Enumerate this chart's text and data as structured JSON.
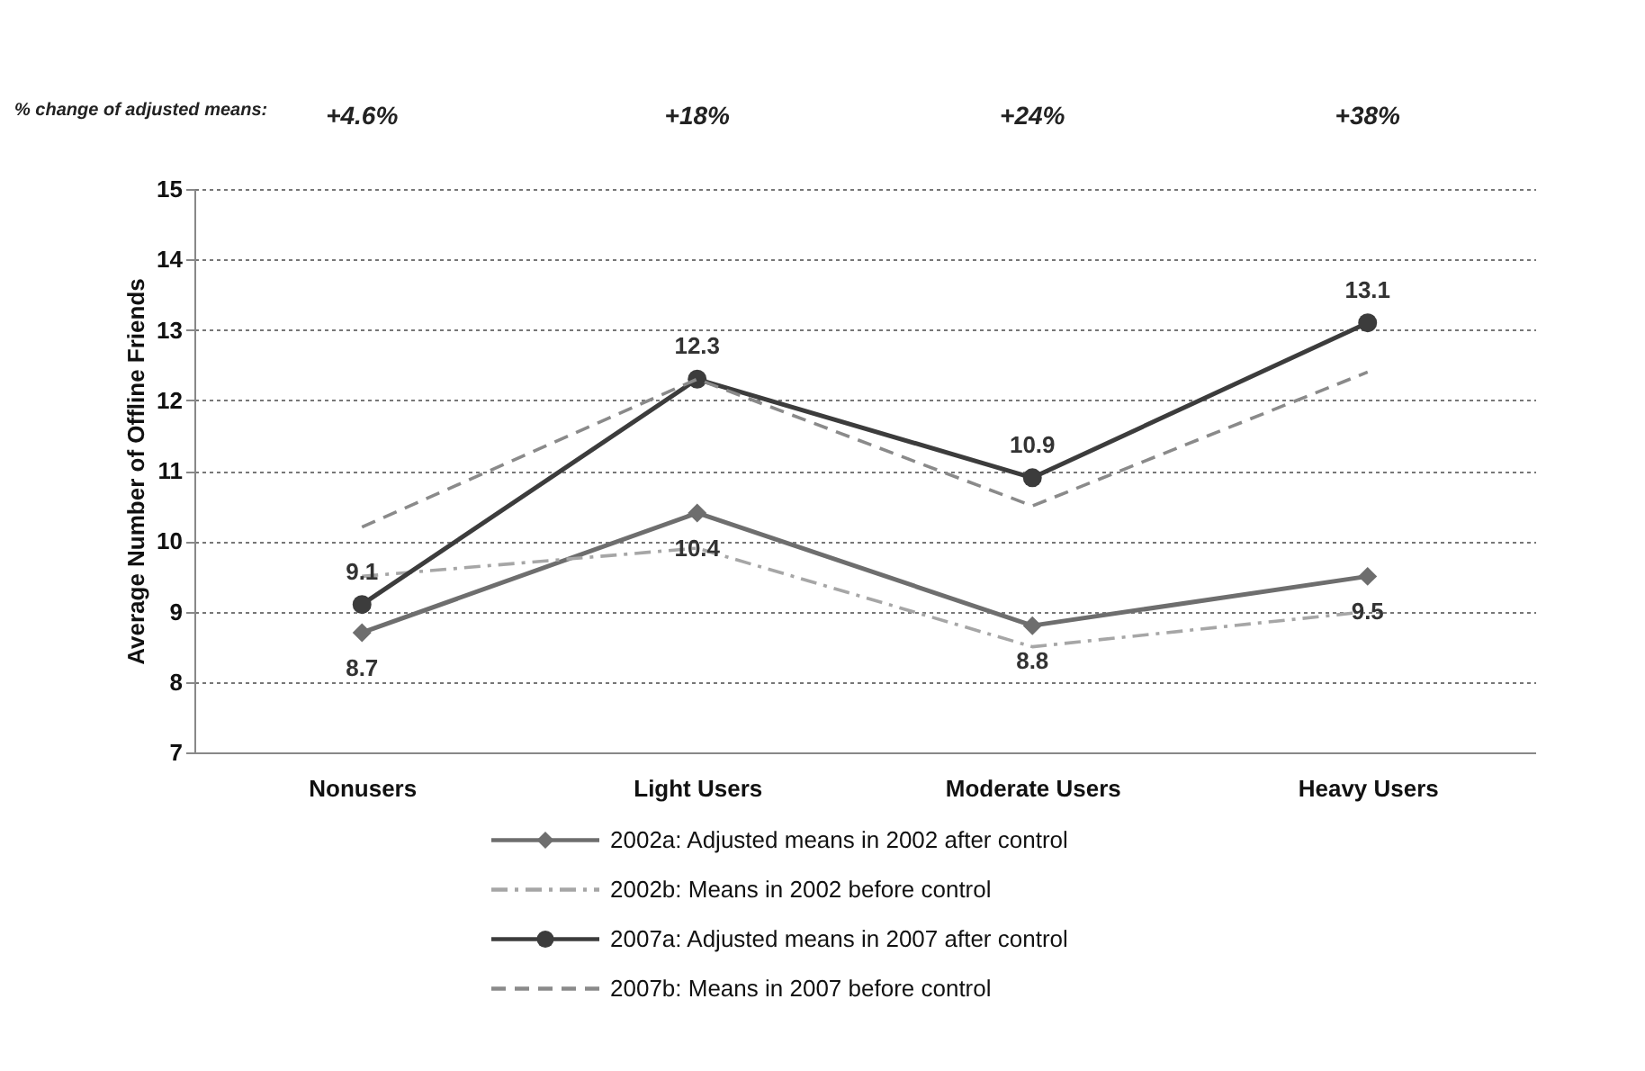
{
  "chart_data": {
    "type": "line",
    "categories": [
      "Nonusers",
      "Light Users",
      "Moderate Users",
      "Heavy Users"
    ],
    "ylabel": "Average Number of Offline Friends",
    "ylim": [
      7,
      15
    ],
    "yticks": [
      7,
      8,
      9,
      10,
      11,
      12,
      13,
      14,
      15
    ],
    "grid": "y",
    "legend": "bottom",
    "annotations": [
      "% change of adjusted means:",
      "+4.6%",
      "+18%",
      "+24%",
      "+38%"
    ],
    "series": [
      {
        "name": "2002a: Adjusted means in 2002 after control",
        "color": "#6e6e6e",
        "values": [
          8.7,
          10.4,
          8.8,
          9.5
        ],
        "marker": "diamond",
        "line_style": "solid",
        "value_labels": [
          "8.7",
          "10.4",
          "8.8",
          "9.5"
        ]
      },
      {
        "name": "2002b: Means in 2002 before control",
        "color": "#a6a6a6",
        "values": [
          9.5,
          9.9,
          8.5,
          9.0
        ],
        "marker": "none",
        "line_style": "dashdot"
      },
      {
        "name": "2007a: Adjusted means in 2007 after control",
        "color": "#3c3c3c",
        "values": [
          9.1,
          12.3,
          10.9,
          13.1
        ],
        "marker": "circle",
        "line_style": "solid",
        "value_labels": [
          "9.1",
          "12.3",
          "10.9",
          "13.1"
        ]
      },
      {
        "name": "2007b: Means in 2007 before control",
        "color": "#8a8a8a",
        "values": [
          10.2,
          12.3,
          10.5,
          12.4
        ],
        "marker": "none",
        "line_style": "dashed"
      }
    ]
  }
}
